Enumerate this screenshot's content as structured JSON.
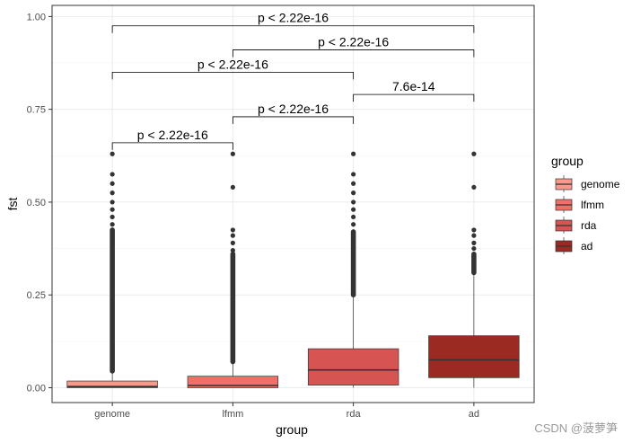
{
  "chart_data": {
    "type": "boxplot",
    "xlabel": "group",
    "ylabel": "fst",
    "categories": [
      "genome",
      "lfmm",
      "rda",
      "ad"
    ],
    "ylim": [
      -0.04,
      1.03
    ],
    "y_ticks": [
      "0.00",
      "0.25",
      "0.50",
      "0.75",
      "1.00"
    ],
    "y_tick_values": [
      0,
      0.25,
      0.5,
      0.75,
      1.0
    ],
    "grid": true,
    "legend": {
      "title": "group",
      "position": "right",
      "entries": [
        "genome",
        "lfmm",
        "rda",
        "ad"
      ]
    },
    "colors": {
      "genome": "#F8998B",
      "lfmm": "#F26F68",
      "rda": "#D65452",
      "ad": "#9B2A22",
      "outline": "#333333",
      "outlier": "#333333"
    },
    "series": [
      {
        "group": "genome",
        "q1": 0.0,
        "median": 0.003,
        "q3": 0.018,
        "whisker_low": 0.0,
        "whisker_high": 0.045,
        "outliers_dense": [
          0.045,
          0.425
        ],
        "outliers_points": [
          0.44,
          0.46,
          0.48,
          0.5,
          0.525,
          0.55,
          0.575,
          0.63
        ]
      },
      {
        "group": "lfmm",
        "q1": 0.0,
        "median": 0.006,
        "q3": 0.031,
        "whisker_low": 0.0,
        "whisker_high": 0.07,
        "outliers_dense": [
          0.07,
          0.36
        ],
        "outliers_points": [
          0.37,
          0.39,
          0.41,
          0.425,
          0.54,
          0.63
        ]
      },
      {
        "group": "rda",
        "q1": 0.007,
        "median": 0.048,
        "q3": 0.105,
        "whisker_low": 0.0,
        "whisker_high": 0.25,
        "outliers_dense": [
          0.25,
          0.42
        ],
        "outliers_points": [
          0.44,
          0.46,
          0.48,
          0.5,
          0.525,
          0.55,
          0.575,
          0.63
        ]
      },
      {
        "group": "ad",
        "q1": 0.027,
        "median": 0.075,
        "q3": 0.14,
        "whisker_low": 0.0,
        "whisker_high": 0.31,
        "outliers_dense": [
          0.31,
          0.36
        ],
        "outliers_points": [
          0.375,
          0.39,
          0.41,
          0.425,
          0.54,
          0.63
        ]
      }
    ],
    "comparisons": [
      {
        "from": "genome",
        "to": "lfmm",
        "label": "p < 2.22e-16",
        "y": 0.66
      },
      {
        "from": "lfmm",
        "to": "rda",
        "label": "p < 2.22e-16",
        "y": 0.73
      },
      {
        "from": "rda",
        "to": "ad",
        "label": "7.6e-14",
        "y": 0.79
      },
      {
        "from": "genome",
        "to": "rda",
        "label": "p < 2.22e-16",
        "y": 0.85
      },
      {
        "from": "lfmm",
        "to": "ad",
        "label": "p < 2.22e-16",
        "y": 0.91
      },
      {
        "from": "genome",
        "to": "ad",
        "label": "p < 2.22e-16",
        "y": 0.975
      }
    ]
  },
  "watermark": "CSDN @菠萝笋"
}
